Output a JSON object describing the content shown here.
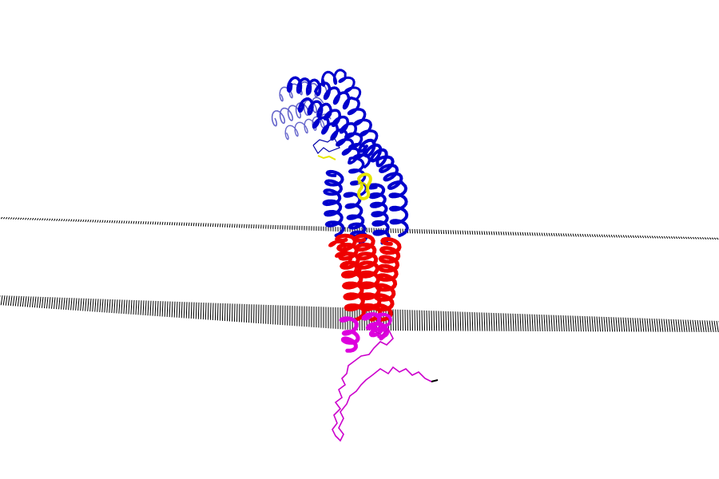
{
  "scene": {
    "background": "#ffffff",
    "membrane_color": "#000000",
    "segments": [
      {
        "id": "extracellular-domain",
        "color": "#0000cc"
      },
      {
        "id": "extracellular-domain-far",
        "color": "#6666cc"
      },
      {
        "id": "transmembrane-helices",
        "color": "#ee0000"
      },
      {
        "id": "cytoplasmic-helix-ends",
        "color": "#dd00dd"
      },
      {
        "id": "cytoplasmic-tail",
        "color": "#cc00cc"
      },
      {
        "id": "ligand",
        "color": "#e6e600"
      }
    ]
  }
}
